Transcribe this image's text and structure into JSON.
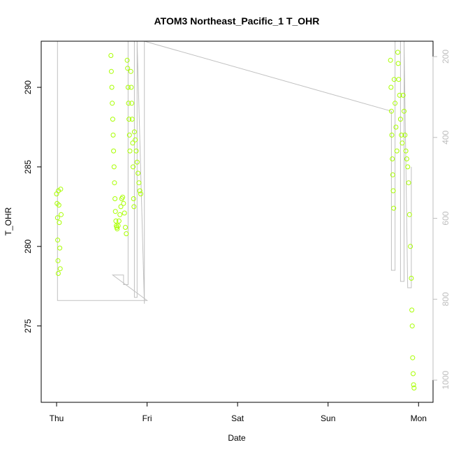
{
  "chart_data": {
    "type": "scatter",
    "title": "ATOM3 Northeast_Pacific_1 T_OHR",
    "xlabel": "Date",
    "ylabel": "T_OHR",
    "x_ticks": [
      "Thu",
      "Fri",
      "Sat",
      "Sun",
      "Mon"
    ],
    "xlim": [
      -0.17,
      4.16
    ],
    "ylim": [
      270.2,
      292.9
    ],
    "y_ticks": [
      275,
      280,
      285,
      290
    ],
    "y2_ticks": [
      200,
      400,
      600,
      800,
      1000
    ],
    "y2lim": [
      1055,
      162
    ],
    "colors": {
      "points": "#a8ff00",
      "profile_line": "#c0c0c0"
    },
    "series": [
      {
        "type": "points",
        "values": [
          [
            0.0,
            283.3
          ],
          [
            0.005,
            282.7
          ],
          [
            0.01,
            281.8
          ],
          [
            0.012,
            280.4
          ],
          [
            0.015,
            279.1
          ],
          [
            0.018,
            278.3
          ],
          [
            0.02,
            283.5
          ],
          [
            0.025,
            282.6
          ],
          [
            0.03,
            281.5
          ],
          [
            0.035,
            279.9
          ],
          [
            0.04,
            278.6
          ],
          [
            0.045,
            283.6
          ],
          [
            0.05,
            282.0
          ],
          [
            0.6,
            292.0
          ],
          [
            0.605,
            291.0
          ],
          [
            0.61,
            290.0
          ],
          [
            0.615,
            289.0
          ],
          [
            0.62,
            288.0
          ],
          [
            0.625,
            287.0
          ],
          [
            0.63,
            286.0
          ],
          [
            0.635,
            285.0
          ],
          [
            0.64,
            284.0
          ],
          [
            0.645,
            283.0
          ],
          [
            0.65,
            282.2
          ],
          [
            0.655,
            281.6
          ],
          [
            0.66,
            281.3
          ],
          [
            0.665,
            281.2
          ],
          [
            0.67,
            281.1
          ],
          [
            0.68,
            281.3
          ],
          [
            0.69,
            281.6
          ],
          [
            0.7,
            282.0
          ],
          [
            0.71,
            282.5
          ],
          [
            0.72,
            283.0
          ],
          [
            0.73,
            283.1
          ],
          [
            0.74,
            282.7
          ],
          [
            0.75,
            282.1
          ],
          [
            0.76,
            281.2
          ],
          [
            0.77,
            280.8
          ],
          [
            0.78,
            291.7
          ],
          [
            0.785,
            291.2
          ],
          [
            0.79,
            290.0
          ],
          [
            0.795,
            289.0
          ],
          [
            0.8,
            288.0
          ],
          [
            0.805,
            287.0
          ],
          [
            0.81,
            286.0
          ],
          [
            0.82,
            291.0
          ],
          [
            0.825,
            290.0
          ],
          [
            0.83,
            289.0
          ],
          [
            0.835,
            288.0
          ],
          [
            0.84,
            286.5
          ],
          [
            0.845,
            285.0
          ],
          [
            0.85,
            283.0
          ],
          [
            0.855,
            282.5
          ],
          [
            0.86,
            287.2
          ],
          [
            0.87,
            286.7
          ],
          [
            0.88,
            286.0
          ],
          [
            0.89,
            285.3
          ],
          [
            0.9,
            284.6
          ],
          [
            0.91,
            284.0
          ],
          [
            0.92,
            283.5
          ],
          [
            0.93,
            283.3
          ],
          [
            3.69,
            291.7
          ],
          [
            3.695,
            290.0
          ],
          [
            3.7,
            288.5
          ],
          [
            3.705,
            287.0
          ],
          [
            3.71,
            285.5
          ],
          [
            3.715,
            284.5
          ],
          [
            3.72,
            283.5
          ],
          [
            3.725,
            282.4
          ],
          [
            3.73,
            290.5
          ],
          [
            3.74,
            289.0
          ],
          [
            3.75,
            287.5
          ],
          [
            3.76,
            286.0
          ],
          [
            3.77,
            292.2
          ],
          [
            3.775,
            291.5
          ],
          [
            3.78,
            290.5
          ],
          [
            3.79,
            289.5
          ],
          [
            3.8,
            288.0
          ],
          [
            3.81,
            287.0
          ],
          [
            3.82,
            286.5
          ],
          [
            3.83,
            289.5
          ],
          [
            3.84,
            288.5
          ],
          [
            3.85,
            287.0
          ],
          [
            3.86,
            286.0
          ],
          [
            3.87,
            285.5
          ],
          [
            3.88,
            285.0
          ],
          [
            3.89,
            284.0
          ],
          [
            3.9,
            282.0
          ],
          [
            3.91,
            280.0
          ],
          [
            3.92,
            278.0
          ],
          [
            3.925,
            276.0
          ],
          [
            3.93,
            275.0
          ],
          [
            3.935,
            273.0
          ],
          [
            3.94,
            272.0
          ],
          [
            3.945,
            271.3
          ],
          [
            3.95,
            271.1
          ]
        ]
      },
      {
        "type": "line",
        "values": [
          [
            0.01,
            292.9
          ],
          [
            0.01,
            276.6
          ],
          [
            1.0,
            276.6
          ],
          [
            0.62,
            278.2
          ],
          [
            0.74,
            278.2
          ],
          [
            0.74,
            277.6
          ],
          [
            0.79,
            277.6
          ],
          [
            0.79,
            292.9
          ],
          [
            0.86,
            292.9
          ],
          [
            0.86,
            276.8
          ],
          [
            0.89,
            276.8
          ],
          [
            0.89,
            292.9
          ],
          [
            0.97,
            276.4
          ],
          [
            0.97,
            292.9
          ],
          [
            3.7,
            288.5
          ],
          [
            3.7,
            278.5
          ],
          [
            3.74,
            278.5
          ],
          [
            3.74,
            292.9
          ],
          [
            3.8,
            292.9
          ],
          [
            3.8,
            277.8
          ],
          [
            3.84,
            277.8
          ],
          [
            3.84,
            292.9
          ],
          [
            3.88,
            277.4
          ],
          [
            3.92,
            277.4
          ],
          [
            3.92,
            285.0
          ]
        ]
      }
    ]
  }
}
